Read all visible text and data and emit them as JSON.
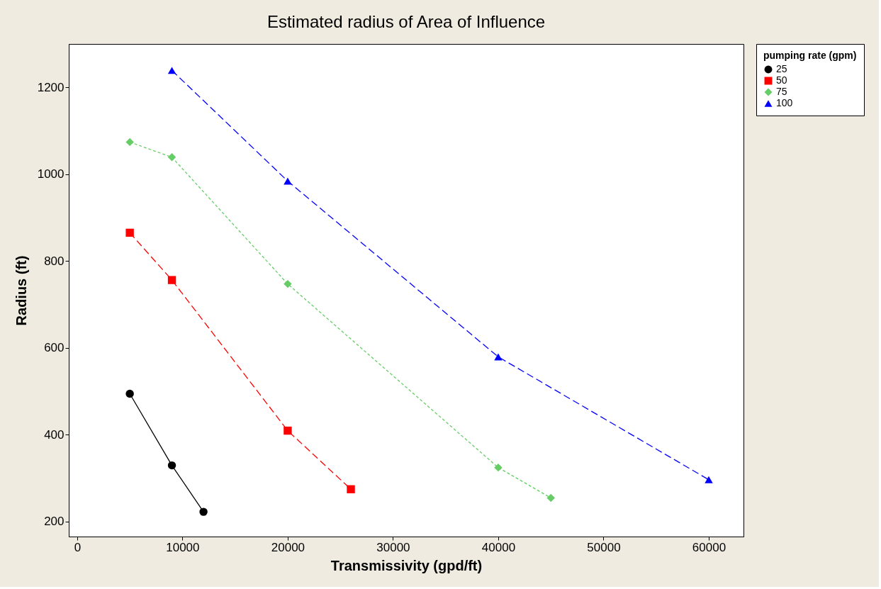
{
  "chart_data": {
    "type": "line",
    "title": "Estimated radius of Area of Influence",
    "xlabel": "Transmissivity (gpd/ft)",
    "ylabel": "Radius (ft)",
    "legend_title": "pumping rate (gpm)",
    "legend": "right",
    "grid": false,
    "xlim": [
      -800,
      63300
    ],
    "xticks": [
      0,
      10000,
      20000,
      30000,
      40000,
      50000,
      60000
    ],
    "ylim": [
      165,
      1300
    ],
    "yticks": [
      200,
      400,
      600,
      800,
      1000,
      1200
    ],
    "series": [
      {
        "name": "25",
        "color": "#000000",
        "marker": "circle",
        "line_style": "solid",
        "x": [
          5000,
          9000,
          12000
        ],
        "values": [
          494,
          329,
          222
        ]
      },
      {
        "name": "50",
        "color": "#ff0000",
        "marker": "square",
        "line_style": "dashed",
        "x": [
          5000,
          9000,
          20000,
          26000
        ],
        "values": [
          865,
          756,
          409,
          274
        ]
      },
      {
        "name": "75",
        "color": "#66cc66",
        "marker": "diamond",
        "line_style": "dotted",
        "x": [
          5000,
          9000,
          20000,
          40000,
          45000
        ],
        "values": [
          1074,
          1039,
          747,
          324,
          254
        ]
      },
      {
        "name": "100",
        "color": "#0000ff",
        "marker": "triangle",
        "line_style": "dashed",
        "x": [
          9000,
          20000,
          40000,
          60000
        ],
        "values": [
          1239,
          984,
          579,
          296
        ]
      }
    ]
  }
}
